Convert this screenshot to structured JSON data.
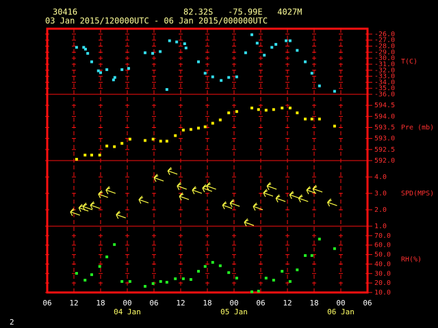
{
  "header": {
    "station": "30416",
    "location": "82.32S   -75.99E   4027M",
    "period": "03 Jan 2015/120000UTC - 06 Jan 2015/000000UTC"
  },
  "footer": "2",
  "chart_data": [
    {
      "type": "scatter",
      "ylabel": "T(C)",
      "color": "#33ddee",
      "x": [
        12.6,
        14.2,
        14.6,
        15.1,
        16.0,
        17.5,
        18.0,
        19.4,
        20.9,
        21.2,
        22.8,
        24.3,
        28.0,
        29.7,
        31.4,
        32.9,
        33.5,
        35.1,
        36.9,
        37.2,
        40.0,
        41.5,
        43.2,
        45.1,
        46.8,
        48.6,
        50.6,
        52.0,
        53.2,
        54.8,
        56.5,
        57.4,
        59.7,
        60.6,
        62.2,
        64.0,
        65.5,
        67.2,
        70.6
      ],
      "values": [
        -28.2,
        -28.2,
        -28.5,
        -29.2,
        -30.6,
        -32.1,
        -32.4,
        -31.9,
        -33.6,
        -33.2,
        -31.9,
        -31.7,
        -29.1,
        -29.2,
        -28.9,
        -35.2,
        -27.1,
        -27.3,
        -27.6,
        -28.3,
        -30.6,
        -32.5,
        -33.1,
        -33.7,
        -33.2,
        -33.1,
        -29.1,
        -26.1,
        -27.5,
        -29.5,
        -28.2,
        -27.7,
        -27.1,
        -27.1,
        -28.7,
        -30.6,
        -32.5,
        -34.6,
        -35.5
      ],
      "ylim": [
        -36,
        -25.1
      ],
      "yticks": [
        {
          "value": -26,
          "label": "-26.0"
        },
        {
          "value": -27,
          "label": "-27.0"
        },
        {
          "value": -28,
          "label": "-28.0"
        },
        {
          "value": -29,
          "label": "-29.0"
        },
        {
          "value": -30,
          "label": "-30.0"
        },
        {
          "value": -31,
          "label": "-31.0"
        },
        {
          "value": -32,
          "label": "-32.0"
        },
        {
          "value": -33,
          "label": "-33.0"
        },
        {
          "value": -34,
          "label": "-34.0"
        },
        {
          "value": -35,
          "label": "-35.0"
        },
        {
          "value": -36,
          "label": "-36.0"
        }
      ]
    },
    {
      "type": "scatter",
      "ylabel": "Pre (mb)",
      "color": "#ffee00",
      "x": [
        12.6,
        14.5,
        16.0,
        17.8,
        19.4,
        21.1,
        22.8,
        24.6,
        28.0,
        29.8,
        31.5,
        32.9,
        34.8,
        36.6,
        38.3,
        40.0,
        41.5,
        43.2,
        44.9,
        46.8,
        48.6,
        52.0,
        53.5,
        55.2,
        56.9,
        58.8,
        60.6,
        62.2,
        64.0,
        65.5,
        67.2,
        70.6
      ],
      "values": [
        592.06,
        592.25,
        592.25,
        592.25,
        592.66,
        592.63,
        592.78,
        592.97,
        592.91,
        592.97,
        592.88,
        592.88,
        593.13,
        593.38,
        593.41,
        593.47,
        593.53,
        593.69,
        593.84,
        594.16,
        594.22,
        594.38,
        594.31,
        594.28,
        594.31,
        594.38,
        594.38,
        594.16,
        593.88,
        593.88,
        593.88,
        593.56
      ],
      "ylim": [
        592,
        595
      ],
      "yticks": [
        {
          "value": 592,
          "label": "592.0"
        },
        592.5,
        {
          "value": 593,
          "label": "593.0"
        },
        593.5,
        {
          "value": 594,
          "label": "594.0"
        },
        594.5
      ]
    },
    {
      "type": "wind",
      "ylabel": "SPD(MPS)",
      "color": "#ffff44",
      "x": [
        11.2,
        13.1,
        14.0,
        15.7,
        17.5,
        19.2,
        21.5,
        26.6,
        30.0,
        33.1,
        35.2,
        35.7,
        38.6,
        40.9,
        41.8,
        45.4,
        47.1,
        50.3,
        52.3,
        54.6,
        55.4,
        57.4,
        60.5,
        62.5,
        64.3,
        65.7,
        69.0
      ],
      "values": [
        1.88,
        2.13,
        2.21,
        2.29,
        2.96,
        3.21,
        1.71,
        2.63,
        3.96,
        4.38,
        3.46,
        2.83,
        3.21,
        3.33,
        3.46,
        2.29,
        2.42,
        1.25,
        2.21,
        3.04,
        3.46,
        2.71,
        2.92,
        2.71,
        3.21,
        3.29,
        2.46
      ],
      "ylim": [
        1,
        5
      ],
      "yticks": [
        {
          "value": 1,
          "label": "1.0"
        },
        {
          "value": 2,
          "label": "2.0"
        },
        {
          "value": 3,
          "label": "3.0"
        },
        {
          "value": 4,
          "label": "4.0"
        }
      ]
    },
    {
      "type": "scatter",
      "ylabel": "RH(%)",
      "color": "#22ee22",
      "x": [
        12.6,
        14.5,
        16.0,
        17.8,
        19.4,
        21.1,
        22.8,
        24.6,
        28.0,
        29.8,
        31.5,
        32.9,
        34.8,
        36.6,
        38.3,
        40.0,
        41.5,
        43.2,
        44.9,
        46.8,
        48.6,
        52.0,
        53.5,
        55.2,
        56.9,
        58.8,
        60.6,
        62.2,
        64.0,
        65.5,
        67.2,
        70.6
      ],
      "values": [
        30.2,
        23.0,
        28.8,
        37.5,
        47.6,
        60.6,
        21.6,
        21.6,
        16.5,
        19.4,
        21.6,
        20.8,
        24.5,
        24.5,
        23.7,
        32.4,
        37.5,
        41.8,
        38.2,
        31.0,
        25.2,
        10.7,
        11.4,
        25.2,
        23.0,
        32.4,
        21.6,
        33.9,
        49.0,
        49.0,
        66.4,
        56.3
      ],
      "ylim": [
        10,
        80
      ],
      "yticks": [
        {
          "value": 10,
          "label": "10.0"
        },
        {
          "value": 20,
          "label": "20.0"
        },
        {
          "value": 30,
          "label": "30.0"
        },
        {
          "value": 40,
          "label": "40.0"
        },
        {
          "value": 50,
          "label": "50.0"
        },
        {
          "value": 60,
          "label": "60.0"
        },
        {
          "value": 70,
          "label": "70.0"
        }
      ],
      "xlim": [
        6,
        78
      ],
      "xticks": [
        {
          "value": 6,
          "label": "06"
        },
        {
          "value": 12,
          "label": "12"
        },
        {
          "value": 18,
          "label": "18"
        },
        {
          "value": 24,
          "label": "00"
        },
        {
          "value": 30,
          "label": "06"
        },
        {
          "value": 36,
          "label": "12"
        },
        {
          "value": 42,
          "label": "18"
        },
        {
          "value": 48,
          "label": "00"
        },
        {
          "value": 54,
          "label": "06"
        },
        {
          "value": 60,
          "label": "12"
        },
        {
          "value": 66,
          "label": "18"
        },
        {
          "value": 72,
          "label": "00"
        },
        {
          "value": 78,
          "label": "06"
        }
      ],
      "date_labels": [
        {
          "value": 24,
          "label": "04 Jan"
        },
        {
          "value": 48,
          "label": "05 Jan"
        },
        {
          "value": 72,
          "label": "06 Jan"
        }
      ]
    }
  ]
}
